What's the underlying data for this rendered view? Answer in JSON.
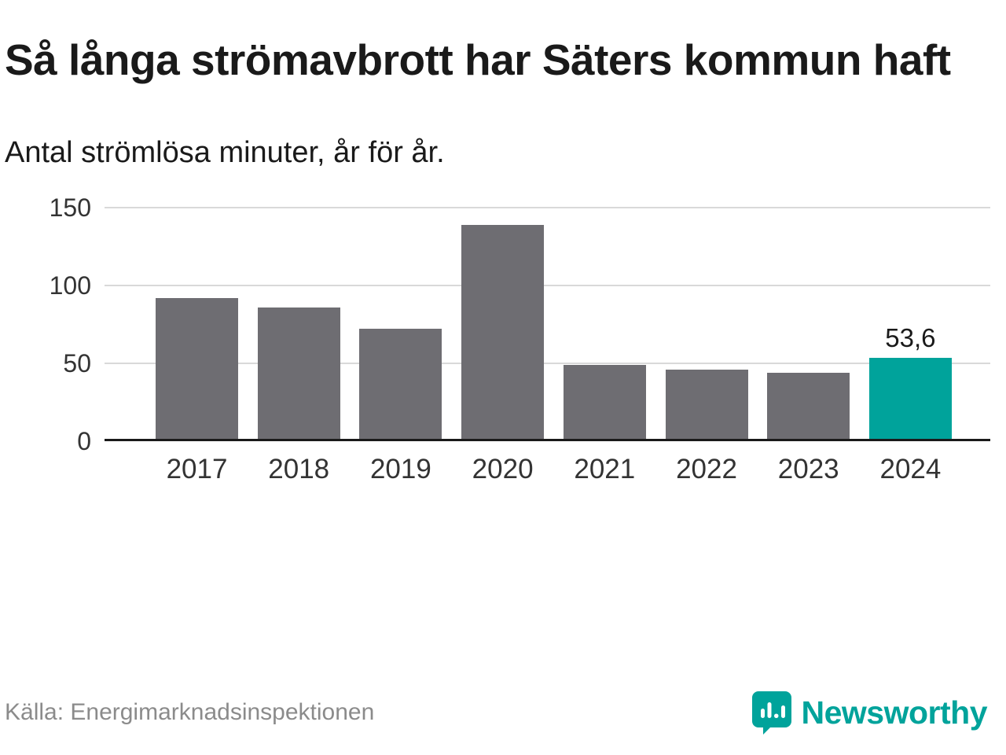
{
  "title": "Så långa strömavbrott har Säters kommun haft",
  "subtitle": "Antal strömlösa minuter, år för år.",
  "source": "Källa: Energimarknadsinspektionen",
  "logo": {
    "text": "Newsworthy",
    "icon": "newsworthy-badge-icon"
  },
  "colors": {
    "bar": "#6e6d72",
    "highlight": "#00a39b",
    "grid": "#d9d9d9",
    "axis": "#1a1a1a",
    "muted_text": "#8b8b8b"
  },
  "chart_data": {
    "type": "bar",
    "title": "Så långa strömavbrott har Säters kommun haft",
    "subtitle": "Antal strömlösa minuter, år för år.",
    "categories": [
      "2017",
      "2018",
      "2019",
      "2020",
      "2021",
      "2022",
      "2023",
      "2024"
    ],
    "values": [
      92,
      86,
      72,
      139,
      49,
      46,
      44,
      53.6
    ],
    "value_labels": [
      "",
      "",
      "",
      "",
      "",
      "",
      "",
      "53,6"
    ],
    "highlight_index": 7,
    "xlabel": "",
    "ylabel": "",
    "ylim": [
      0,
      150
    ],
    "yticks": [
      0,
      50,
      100,
      150
    ],
    "grid": true,
    "legend": false
  }
}
